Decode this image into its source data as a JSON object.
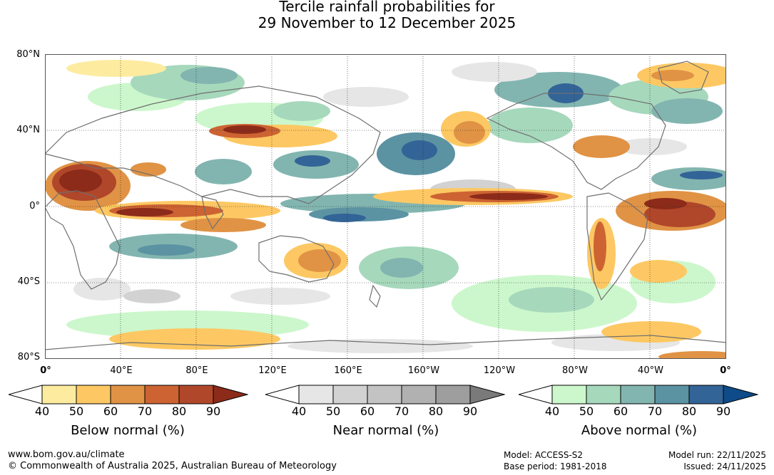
{
  "title": {
    "line1": "Tercile rainfall probabilities for",
    "line2": "29 November to 12 December 2025"
  },
  "map": {
    "latitude_labels": [
      "80°N",
      "40°N",
      "0°",
      "40°S",
      "80°S"
    ],
    "longitude_labels": [
      "0°",
      "40°E",
      "80°E",
      "120°E",
      "160°E",
      "160°W",
      "120°W",
      "80°W",
      "40°W",
      "0°"
    ],
    "gridlines": "dotted every 40°"
  },
  "legends": [
    {
      "title": "Below normal (%)",
      "ticks": [
        "40",
        "50",
        "60",
        "70",
        "80",
        "90"
      ],
      "colors": [
        "#ffffff",
        "#fdeca0",
        "#fdc863",
        "#e09345",
        "#cd6332",
        "#b0472a",
        "#8c2b1a"
      ]
    },
    {
      "title": "Near normal (%)",
      "ticks": [
        "40",
        "50",
        "60",
        "70",
        "80",
        "90"
      ],
      "colors": [
        "#ffffff",
        "#e6e6e6",
        "#d2d2d2",
        "#c3c3c3",
        "#b1b1b1",
        "#9e9e9e",
        "#7a7a7a"
      ]
    },
    {
      "title": "Above normal (%)",
      "ticks": [
        "40",
        "50",
        "60",
        "70",
        "80",
        "90"
      ],
      "colors": [
        "#ffffff",
        "#ccf7cc",
        "#a6d8bc",
        "#82b5b0",
        "#5b93a3",
        "#336497",
        "#0e4b88"
      ]
    }
  ],
  "footer": {
    "website": "www.bom.gov.au/climate",
    "copyright": "© Commonwealth of Australia 2025, Australian Bureau of Meteorology",
    "model": "Model: ACCESS-S2",
    "base_period": "Base period: 1981-2018",
    "model_run": "Model run: 22/11/2025",
    "issued": "Issued: 24/11/2025"
  }
}
